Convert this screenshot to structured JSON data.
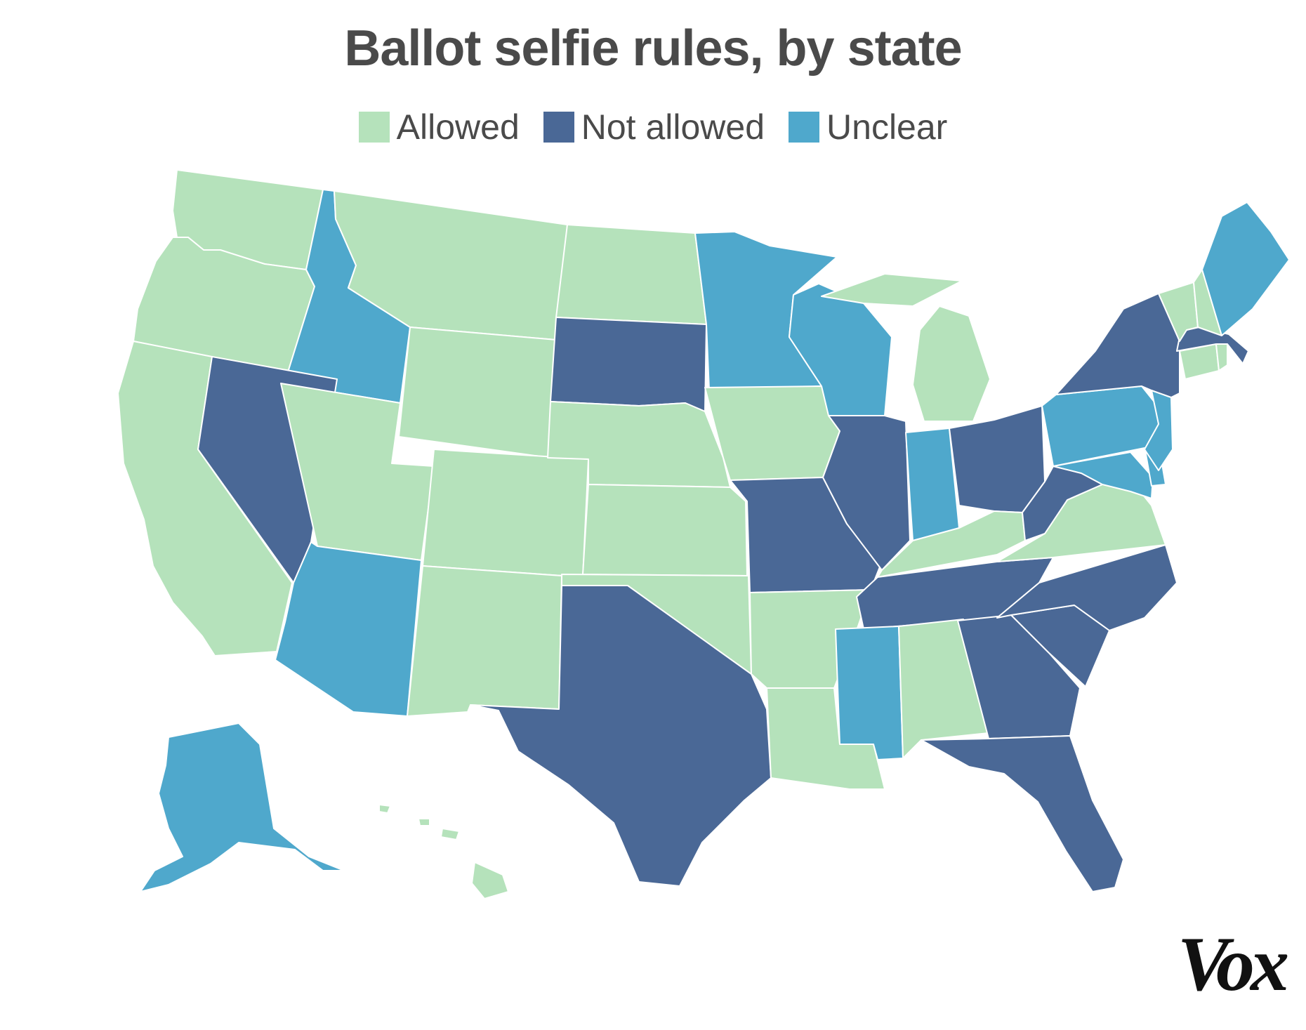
{
  "title": "Ballot selfie rules, by state",
  "legend": [
    {
      "key": "allowed",
      "label": "Allowed",
      "color": "#b5e2bb"
    },
    {
      "key": "not_allowed",
      "label": "Not allowed",
      "color": "#4a6896"
    },
    {
      "key": "unclear",
      "label": "Unclear",
      "color": "#4fa8cc"
    }
  ],
  "logo": "Vox",
  "map_data": {
    "type": "choropleth",
    "states": [
      {
        "id": "WA",
        "category": "allowed"
      },
      {
        "id": "OR",
        "category": "allowed"
      },
      {
        "id": "CA",
        "category": "allowed"
      },
      {
        "id": "ID",
        "category": "unclear"
      },
      {
        "id": "NV",
        "category": "not_allowed"
      },
      {
        "id": "MT",
        "category": "allowed"
      },
      {
        "id": "WY",
        "category": "allowed"
      },
      {
        "id": "UT",
        "category": "allowed"
      },
      {
        "id": "AZ",
        "category": "unclear"
      },
      {
        "id": "CO",
        "category": "allowed"
      },
      {
        "id": "NM",
        "category": "allowed"
      },
      {
        "id": "ND",
        "category": "allowed"
      },
      {
        "id": "SD",
        "category": "not_allowed"
      },
      {
        "id": "NE",
        "category": "allowed"
      },
      {
        "id": "KS",
        "category": "allowed"
      },
      {
        "id": "OK",
        "category": "allowed"
      },
      {
        "id": "TX",
        "category": "not_allowed"
      },
      {
        "id": "MN",
        "category": "unclear"
      },
      {
        "id": "IA",
        "category": "allowed"
      },
      {
        "id": "MO",
        "category": "not_allowed"
      },
      {
        "id": "AR",
        "category": "allowed"
      },
      {
        "id": "LA",
        "category": "allowed"
      },
      {
        "id": "WI",
        "category": "unclear"
      },
      {
        "id": "IL",
        "category": "not_allowed"
      },
      {
        "id": "MI",
        "category": "allowed"
      },
      {
        "id": "IN",
        "category": "unclear"
      },
      {
        "id": "OH",
        "category": "not_allowed"
      },
      {
        "id": "KY",
        "category": "allowed"
      },
      {
        "id": "TN",
        "category": "not_allowed"
      },
      {
        "id": "MS",
        "category": "unclear"
      },
      {
        "id": "AL",
        "category": "allowed"
      },
      {
        "id": "GA",
        "category": "not_allowed"
      },
      {
        "id": "FL",
        "category": "not_allowed"
      },
      {
        "id": "SC",
        "category": "not_allowed"
      },
      {
        "id": "NC",
        "category": "not_allowed"
      },
      {
        "id": "VA",
        "category": "allowed"
      },
      {
        "id": "WV",
        "category": "not_allowed"
      },
      {
        "id": "MD",
        "category": "unclear"
      },
      {
        "id": "DE",
        "category": "unclear"
      },
      {
        "id": "PA",
        "category": "unclear"
      },
      {
        "id": "NJ",
        "category": "unclear"
      },
      {
        "id": "NY",
        "category": "not_allowed"
      },
      {
        "id": "CT",
        "category": "allowed"
      },
      {
        "id": "RI",
        "category": "allowed"
      },
      {
        "id": "MA",
        "category": "not_allowed"
      },
      {
        "id": "VT",
        "category": "allowed"
      },
      {
        "id": "NH",
        "category": "allowed"
      },
      {
        "id": "ME",
        "category": "unclear"
      },
      {
        "id": "AK",
        "category": "unclear"
      },
      {
        "id": "HI",
        "category": "allowed"
      }
    ]
  }
}
